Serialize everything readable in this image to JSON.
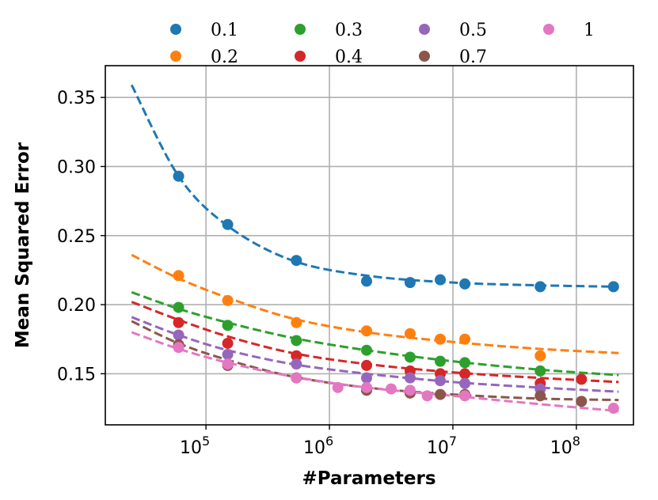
{
  "chart_data": {
    "type": "scatter",
    "title": "",
    "xlabel": "#Parameters",
    "ylabel": "Mean Squared Error",
    "xscale": "log",
    "xlim": [
      15300,
      290000000
    ],
    "ylim": [
      0.113,
      0.373
    ],
    "xticks": [
      {
        "base": "10",
        "exp": "5",
        "value": 100000
      },
      {
        "base": "10",
        "exp": "6",
        "value": 1000000
      },
      {
        "base": "10",
        "exp": "7",
        "value": 10000000
      },
      {
        "base": "10",
        "exp": "8",
        "value": 100000000
      }
    ],
    "yticks": [
      "0.15",
      "0.20",
      "0.25",
      "0.30",
      "0.35"
    ],
    "grid": true,
    "legend_position": "top (above plot), 4 columns",
    "series": [
      {
        "name": "0.1",
        "color": "#1f77b4",
        "points": [
          [
            60000,
            0.293
          ],
          [
            150000,
            0.258
          ],
          [
            540000,
            0.232
          ],
          [
            2000000,
            0.217
          ],
          [
            4500000,
            0.216
          ],
          [
            7900000,
            0.218
          ],
          [
            12500000,
            0.215
          ],
          [
            51000000,
            0.213
          ],
          [
            200000000,
            0.213
          ]
        ],
        "fit": [
          [
            25000,
            0.359
          ],
          [
            60000,
            0.293
          ],
          [
            150000,
            0.257
          ],
          [
            500000,
            0.232
          ],
          [
            2000000,
            0.221
          ],
          [
            10000000,
            0.216
          ],
          [
            50000000,
            0.214
          ],
          [
            220000000,
            0.213
          ]
        ]
      },
      {
        "name": "0.2",
        "color": "#ff7f0e",
        "points": [
          [
            60000,
            0.221
          ],
          [
            150000,
            0.203
          ],
          [
            540000,
            0.187
          ],
          [
            2000000,
            0.181
          ],
          [
            4500000,
            0.179
          ],
          [
            7900000,
            0.175
          ],
          [
            12500000,
            0.175
          ],
          [
            51000000,
            0.163
          ]
        ],
        "fit": [
          [
            25000,
            0.236
          ],
          [
            60000,
            0.219
          ],
          [
            150000,
            0.205
          ],
          [
            500000,
            0.19
          ],
          [
            2000000,
            0.18
          ],
          [
            10000000,
            0.173
          ],
          [
            50000000,
            0.168
          ],
          [
            220000000,
            0.165
          ]
        ]
      },
      {
        "name": "0.3",
        "color": "#2ca02c",
        "points": [
          [
            60000,
            0.198
          ],
          [
            150000,
            0.185
          ],
          [
            540000,
            0.174
          ],
          [
            2000000,
            0.167
          ],
          [
            4500000,
            0.162
          ],
          [
            7900000,
            0.159
          ],
          [
            12500000,
            0.158
          ],
          [
            51000000,
            0.152
          ]
        ],
        "fit": [
          [
            25000,
            0.209
          ],
          [
            60000,
            0.197
          ],
          [
            150000,
            0.187
          ],
          [
            500000,
            0.176
          ],
          [
            2000000,
            0.167
          ],
          [
            10000000,
            0.159
          ],
          [
            50000000,
            0.153
          ],
          [
            220000000,
            0.149
          ]
        ]
      },
      {
        "name": "0.4",
        "color": "#d62728",
        "points": [
          [
            60000,
            0.187
          ],
          [
            150000,
            0.172
          ],
          [
            540000,
            0.163
          ],
          [
            2000000,
            0.156
          ],
          [
            4500000,
            0.152
          ],
          [
            7900000,
            0.15
          ],
          [
            12500000,
            0.15
          ],
          [
            51000000,
            0.143
          ],
          [
            110000000,
            0.146
          ]
        ],
        "fit": [
          [
            25000,
            0.202
          ],
          [
            60000,
            0.189
          ],
          [
            150000,
            0.177
          ],
          [
            500000,
            0.165
          ],
          [
            2000000,
            0.157
          ],
          [
            10000000,
            0.151
          ],
          [
            50000000,
            0.147
          ],
          [
            220000000,
            0.144
          ]
        ]
      },
      {
        "name": "0.5",
        "color": "#9467bd",
        "points": [
          [
            60000,
            0.178
          ],
          [
            150000,
            0.164
          ],
          [
            540000,
            0.157
          ],
          [
            2000000,
            0.147
          ],
          [
            4500000,
            0.147
          ],
          [
            7900000,
            0.145
          ],
          [
            12500000,
            0.143
          ],
          [
            51000000,
            0.139
          ]
        ],
        "fit": [
          [
            25000,
            0.191
          ],
          [
            60000,
            0.178
          ],
          [
            150000,
            0.167
          ],
          [
            500000,
            0.157
          ],
          [
            2000000,
            0.15
          ],
          [
            10000000,
            0.144
          ],
          [
            50000000,
            0.14
          ],
          [
            220000000,
            0.137
          ]
        ]
      },
      {
        "name": "0.7",
        "color": "#8c564b",
        "points": [
          [
            60000,
            0.171
          ],
          [
            150000,
            0.156
          ],
          [
            540000,
            0.147
          ],
          [
            2000000,
            0.138
          ],
          [
            4500000,
            0.136
          ],
          [
            7900000,
            0.135
          ],
          [
            12500000,
            0.135
          ],
          [
            51000000,
            0.134
          ],
          [
            110000000,
            0.13
          ]
        ],
        "fit": [
          [
            25000,
            0.188
          ],
          [
            60000,
            0.172
          ],
          [
            150000,
            0.16
          ],
          [
            500000,
            0.148
          ],
          [
            2000000,
            0.14
          ],
          [
            10000000,
            0.135
          ],
          [
            50000000,
            0.132
          ],
          [
            220000000,
            0.131
          ]
        ]
      },
      {
        "name": "1",
        "color": "#e377c2",
        "points": [
          [
            60000,
            0.169
          ],
          [
            150000,
            0.157
          ],
          [
            540000,
            0.147
          ],
          [
            1170000,
            0.14
          ],
          [
            2000000,
            0.14
          ],
          [
            3160000,
            0.139
          ],
          [
            4500000,
            0.138
          ],
          [
            6200000,
            0.134
          ],
          [
            12500000,
            0.134
          ],
          [
            200000000,
            0.125
          ]
        ],
        "fit": [
          [
            25000,
            0.18
          ],
          [
            60000,
            0.168
          ],
          [
            150000,
            0.158
          ],
          [
            500000,
            0.148
          ],
          [
            2000000,
            0.14
          ],
          [
            10000000,
            0.134
          ],
          [
            50000000,
            0.128
          ],
          [
            220000000,
            0.123
          ]
        ]
      }
    ]
  }
}
